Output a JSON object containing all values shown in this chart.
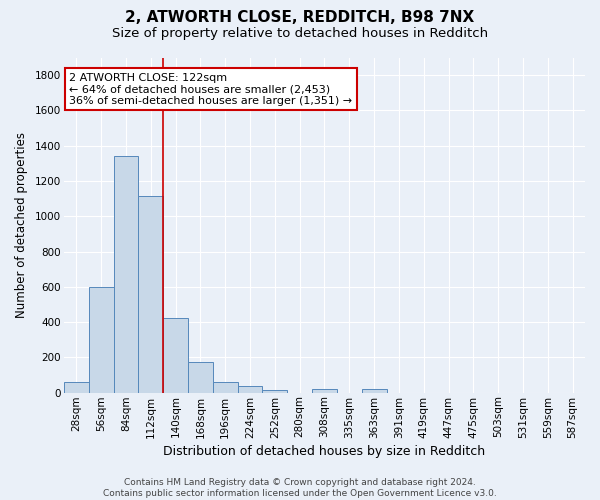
{
  "title1": "2, ATWORTH CLOSE, REDDITCH, B98 7NX",
  "title2": "Size of property relative to detached houses in Redditch",
  "xlabel": "Distribution of detached houses by size in Redditch",
  "ylabel": "Number of detached properties",
  "categories": [
    "28sqm",
    "56sqm",
    "84sqm",
    "112sqm",
    "140sqm",
    "168sqm",
    "196sqm",
    "224sqm",
    "252sqm",
    "280sqm",
    "308sqm",
    "335sqm",
    "363sqm",
    "391sqm",
    "419sqm",
    "447sqm",
    "475sqm",
    "503sqm",
    "531sqm",
    "559sqm",
    "587sqm"
  ],
  "values": [
    58,
    600,
    1340,
    1115,
    425,
    172,
    60,
    38,
    15,
    0,
    20,
    0,
    20,
    0,
    0,
    0,
    0,
    0,
    0,
    0,
    0
  ],
  "bar_color": "#c8d8e8",
  "bar_edge_color": "#5588bb",
  "vline_x": 3.5,
  "vline_color": "#cc0000",
  "annotation_line1": "2 ATWORTH CLOSE: 122sqm",
  "annotation_line2": "← 64% of detached houses are smaller (2,453)",
  "annotation_line3": "36% of semi-detached houses are larger (1,351) →",
  "annotation_box_color": "#ffffff",
  "annotation_box_edge": "#cc0000",
  "ylim": [
    0,
    1900
  ],
  "yticks": [
    0,
    200,
    400,
    600,
    800,
    1000,
    1200,
    1400,
    1600,
    1800
  ],
  "footer": "Contains HM Land Registry data © Crown copyright and database right 2024.\nContains public sector information licensed under the Open Government Licence v3.0.",
  "background_color": "#eaf0f8",
  "plot_background": "#eaf0f8",
  "grid_color": "#ffffff",
  "title1_fontsize": 11,
  "title2_fontsize": 9.5,
  "xlabel_fontsize": 9,
  "ylabel_fontsize": 8.5,
  "tick_fontsize": 7.5,
  "footer_fontsize": 6.5,
  "ann_fontsize": 8
}
